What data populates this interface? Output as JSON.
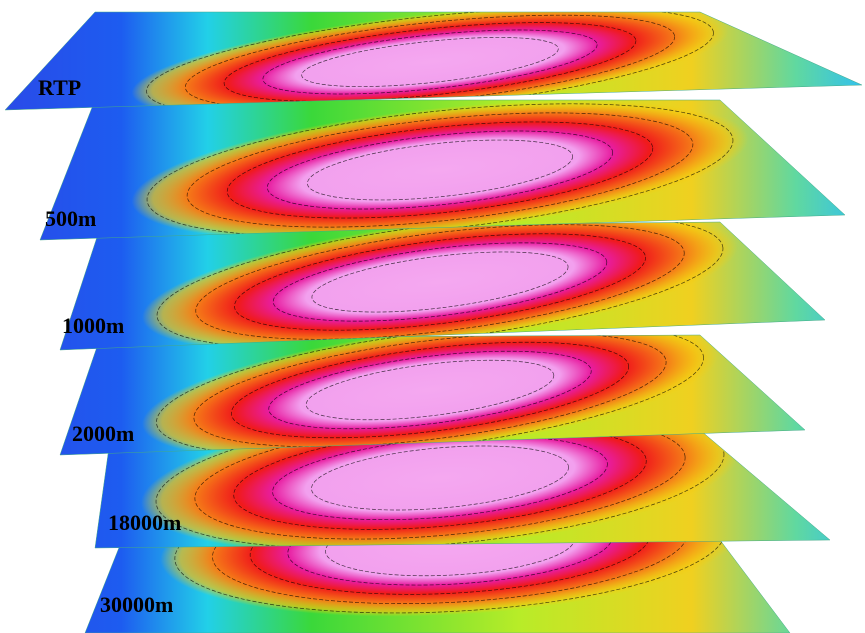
{
  "layers": [
    {
      "label": "RTP"
    },
    {
      "label": "500m"
    },
    {
      "label": "1000m"
    },
    {
      "label": "2000m"
    },
    {
      "label": "18000m"
    },
    {
      "label": "30000m"
    }
  ]
}
